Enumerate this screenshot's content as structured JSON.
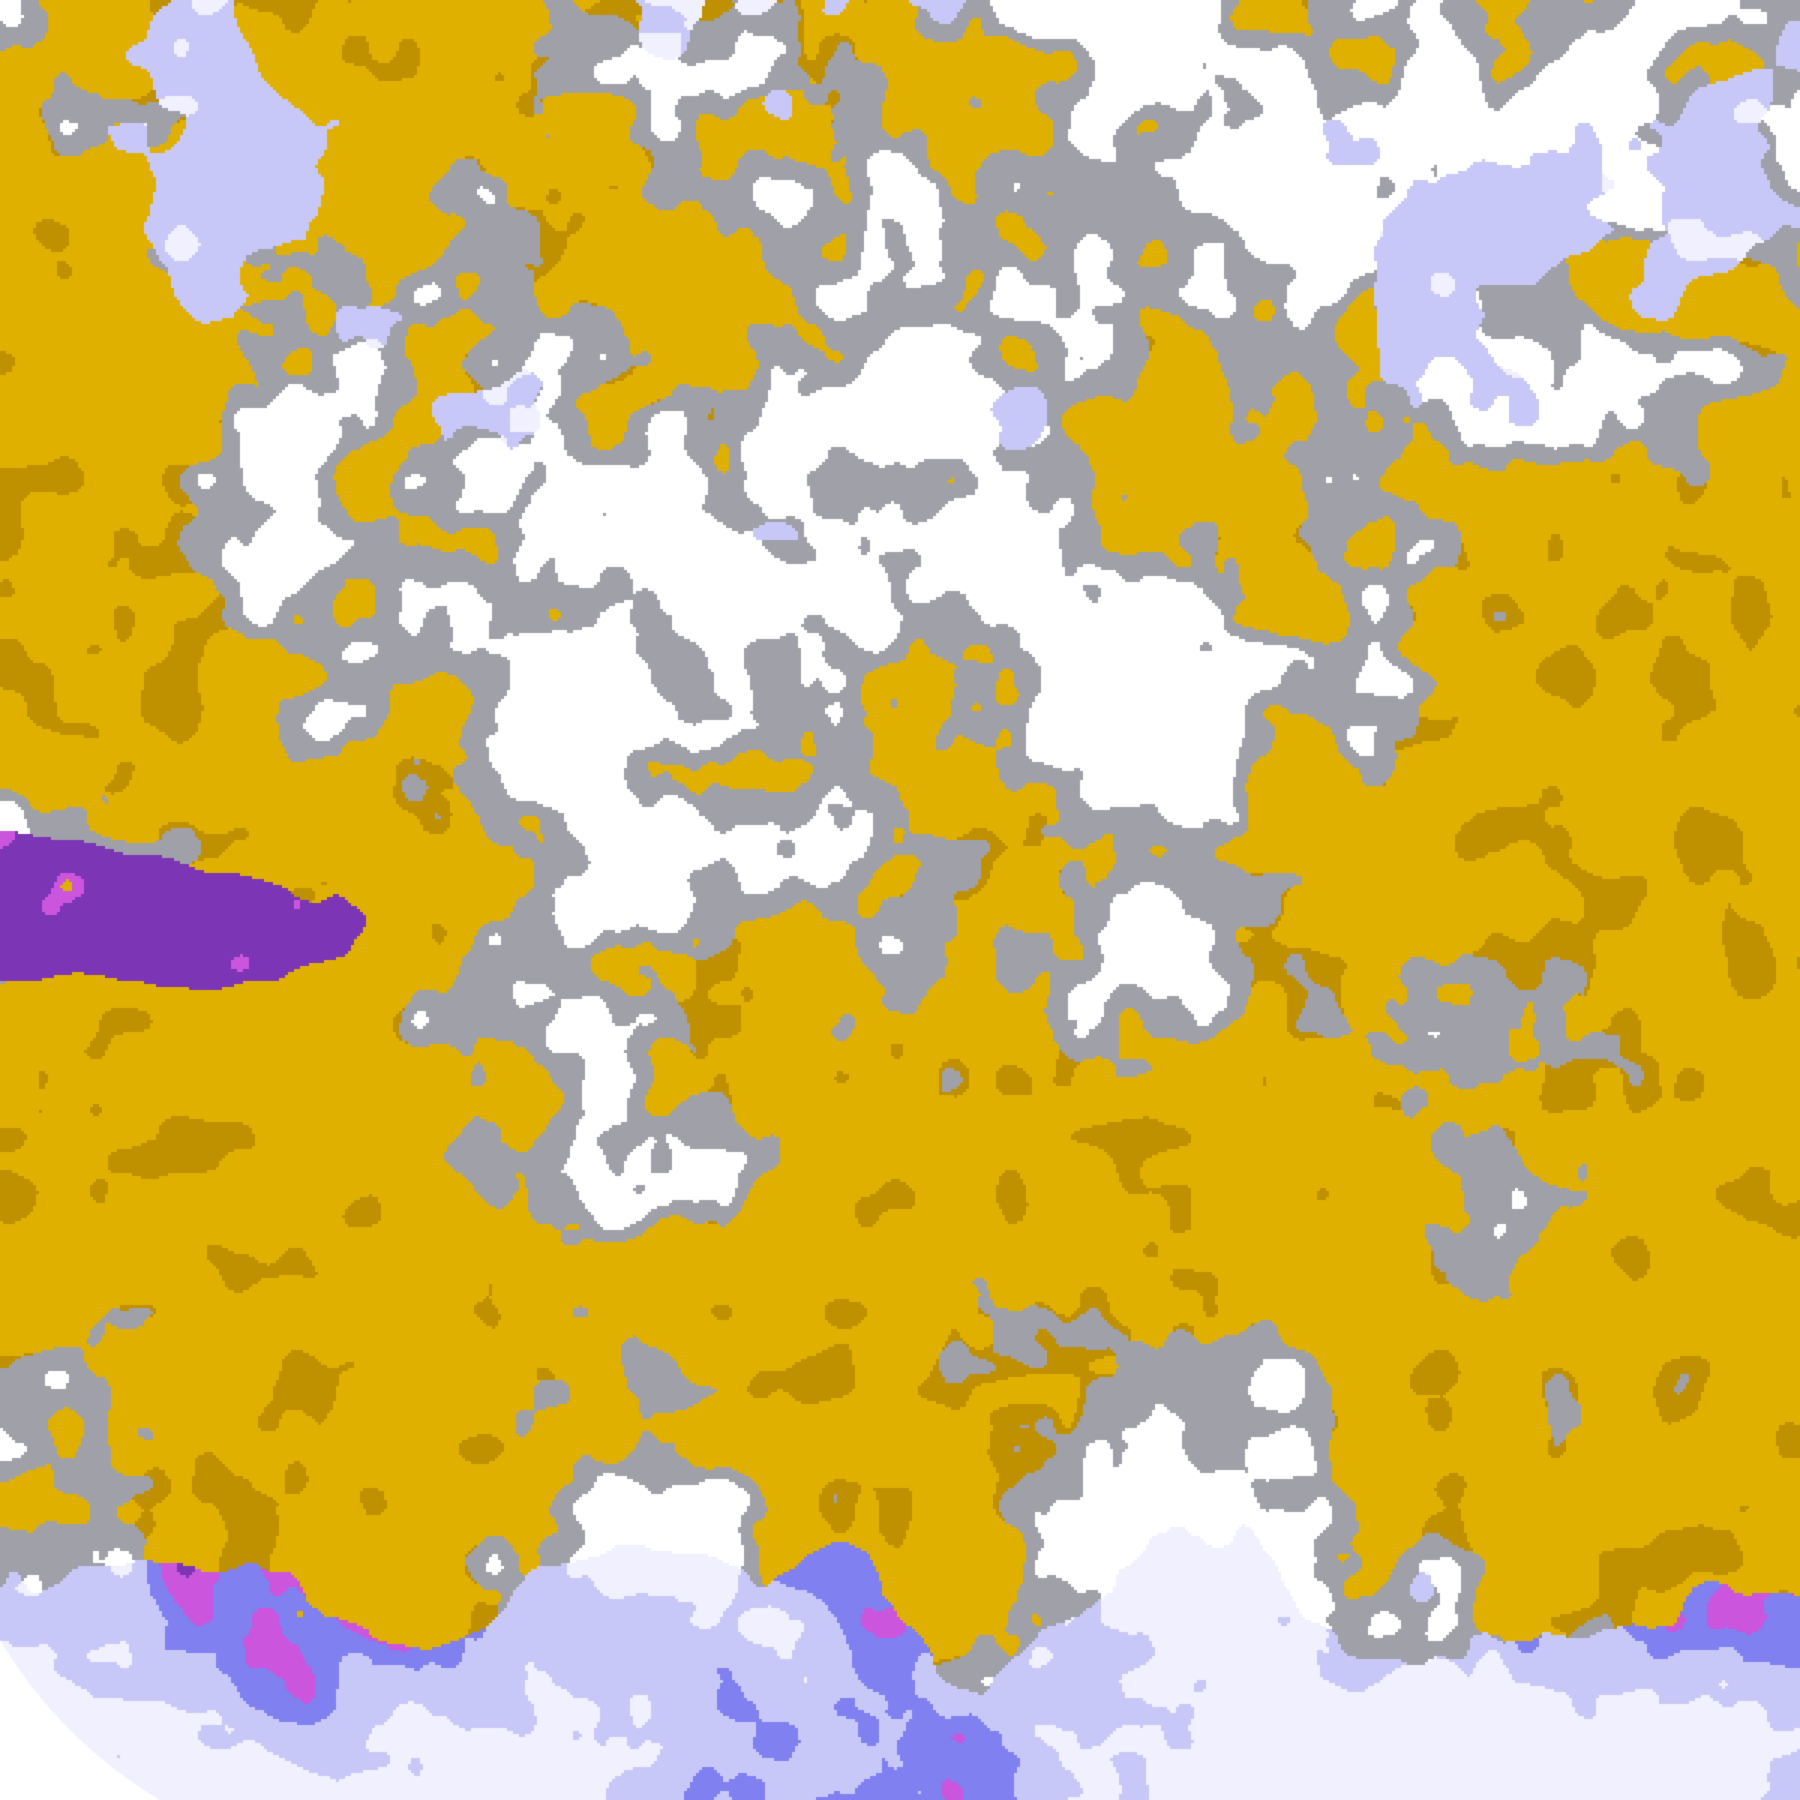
{
  "map": {
    "type": "satellite-cloud-classification",
    "palette": {
      "clear": "#ffffff",
      "gold": "#e0b000",
      "dark_gold": "#bf9000",
      "gray": "#a0a0a8",
      "dark_purple": "#7b35b5",
      "magenta": "#cc55dd",
      "periwinkle": "#8080f0",
      "lavender": "#c8c8f8",
      "pale": "#f0f0ff"
    }
  }
}
